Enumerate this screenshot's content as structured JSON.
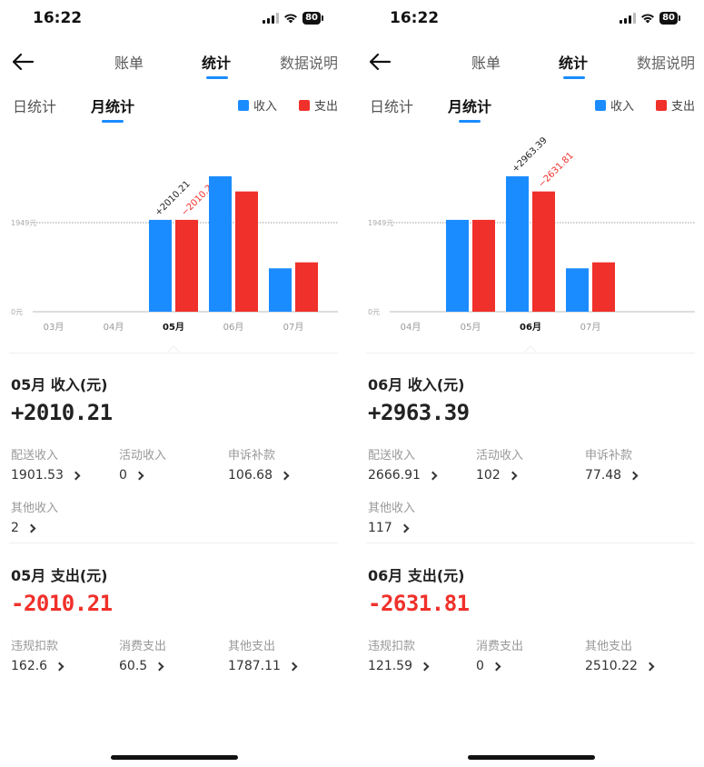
{
  "colors": {
    "income": "#1a8cff",
    "expense": "#f0302a",
    "accent": "#1a8cff"
  },
  "screens": [
    {
      "status_time": "16:22",
      "battery": "80",
      "nav": {
        "tabs": [
          "账单",
          "统计",
          "数据说明"
        ],
        "active_tab": "统计"
      },
      "sub_tabs": [
        "日统计",
        "月统计"
      ],
      "legend": {
        "income": "收入",
        "expense": "支出"
      },
      "chart_data": {
        "type": "bar",
        "categories": [
          "03月",
          "04月",
          "05月",
          "06月",
          "07月"
        ],
        "selected_category": "05月",
        "series": [
          {
            "name": "收入",
            "values": [
              0,
              0,
              2010.21,
              2963.39,
              950
            ]
          },
          {
            "name": "支出",
            "values": [
              0,
              0,
              2010.21,
              2631.81,
              1080
            ]
          }
        ],
        "reference_line": {
          "value": 1949,
          "label": "1949元"
        },
        "zero_label": "0元",
        "ylim": [
          0,
          3600
        ],
        "annotations": {
          "income": "+2010.21",
          "expense": "−2010.21"
        }
      },
      "income_section": {
        "title": "05月 收入(元)",
        "total": "+2010.21",
        "items": [
          {
            "label": "配送收入",
            "value": "1901.53"
          },
          {
            "label": "活动收入",
            "value": "0"
          },
          {
            "label": "申诉补款",
            "value": "106.68"
          },
          {
            "label": "其他收入",
            "value": "2"
          }
        ]
      },
      "expense_section": {
        "title": "05月 支出(元)",
        "total": "-2010.21",
        "items": [
          {
            "label": "违规扣款",
            "value": "162.6"
          },
          {
            "label": "消费支出",
            "value": "60.5"
          },
          {
            "label": "其他支出",
            "value": "1787.11"
          }
        ]
      }
    },
    {
      "status_time": "16:22",
      "battery": "80",
      "nav": {
        "tabs": [
          "账单",
          "统计",
          "数据说明"
        ],
        "active_tab": "统计"
      },
      "sub_tabs": [
        "日统计",
        "月统计"
      ],
      "legend": {
        "income": "收入",
        "expense": "支出"
      },
      "chart_data": {
        "type": "bar",
        "categories": [
          "04月",
          "05月",
          "06月",
          "07月"
        ],
        "selected_category": "06月",
        "series": [
          {
            "name": "收入",
            "values": [
              0,
              2010.21,
              2963.39,
              950
            ]
          },
          {
            "name": "支出",
            "values": [
              0,
              2010.21,
              2631.81,
              1080
            ]
          }
        ],
        "reference_line": {
          "value": 1949,
          "label": "1949元"
        },
        "zero_label": "0元",
        "ylim": [
          0,
          3600
        ],
        "annotations": {
          "income": "+2963.39",
          "expense": "−2631.81"
        }
      },
      "income_section": {
        "title": "06月 收入(元)",
        "total": "+2963.39",
        "items": [
          {
            "label": "配送收入",
            "value": "2666.91"
          },
          {
            "label": "活动收入",
            "value": "102"
          },
          {
            "label": "申诉补款",
            "value": "77.48"
          },
          {
            "label": "其他收入",
            "value": "117"
          }
        ]
      },
      "expense_section": {
        "title": "06月 支出(元)",
        "total": "-2631.81",
        "items": [
          {
            "label": "违规扣款",
            "value": "121.59"
          },
          {
            "label": "消费支出",
            "value": "0"
          },
          {
            "label": "其他支出",
            "value": "2510.22"
          }
        ]
      }
    }
  ]
}
